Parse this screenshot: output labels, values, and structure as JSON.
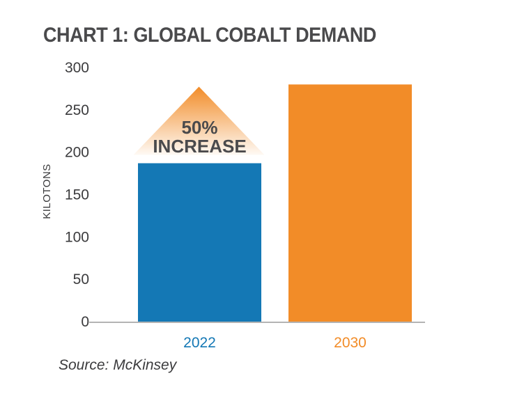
{
  "chart_data": {
    "type": "bar",
    "title": "CHART 1: GLOBAL COBALT DEMAND",
    "ylabel": "KILOTONS",
    "xlabel": "",
    "categories": [
      "2022",
      "2030"
    ],
    "values": [
      187,
      280
    ],
    "ylim": [
      0,
      300
    ],
    "yticks": [
      "0",
      "50",
      "100",
      "150",
      "200",
      "250",
      "300"
    ],
    "colors": [
      "#1478b5",
      "#f28c28"
    ],
    "grid": false,
    "legend": "none",
    "annotation": {
      "lines": [
        "50%",
        "INCREASE"
      ],
      "shape": "arrow-up-triangle",
      "color": "#f28c28"
    }
  },
  "source": "Source: McKinsey"
}
